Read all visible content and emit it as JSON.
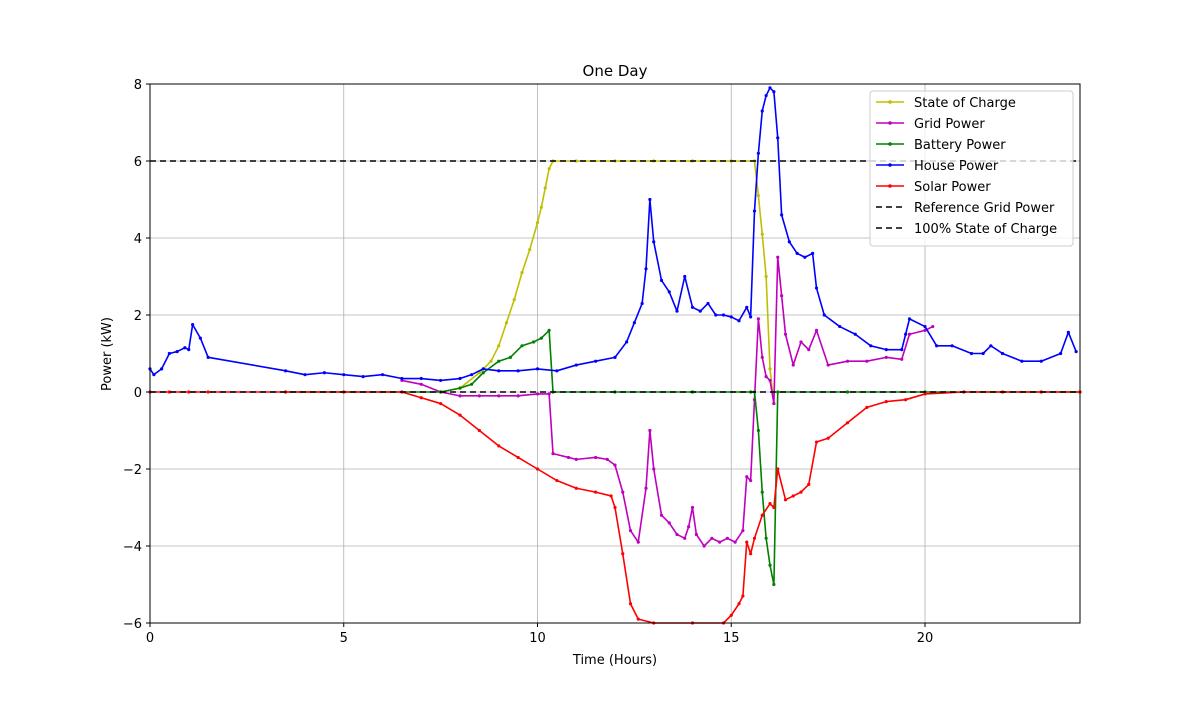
{
  "chart_data": {
    "type": "line",
    "title": "One Day",
    "xlabel": "Time (Hours)",
    "ylabel": "Power (kW)",
    "xlim": [
      0,
      24
    ],
    "ylim": [
      -6,
      8
    ],
    "xticks": [
      0,
      5,
      10,
      15,
      20
    ],
    "yticks": [
      -6,
      -4,
      -2,
      0,
      2,
      4,
      6,
      8
    ],
    "xtick_labels": [
      "0",
      "5",
      "10",
      "15",
      "20"
    ],
    "ytick_labels": [
      "−6",
      "−4",
      "−2",
      "0",
      "2",
      "4",
      "6",
      "8"
    ],
    "grid": true,
    "legend_position": "top-right",
    "series": [
      {
        "name": "State of Charge",
        "color": "#bfbf00",
        "marker": "dot",
        "points": [
          [
            7.5,
            0.0
          ],
          [
            8.0,
            0.1
          ],
          [
            8.5,
            0.5
          ],
          [
            8.8,
            0.8
          ],
          [
            9.0,
            1.2
          ],
          [
            9.2,
            1.8
          ],
          [
            9.4,
            2.4
          ],
          [
            9.6,
            3.1
          ],
          [
            9.8,
            3.7
          ],
          [
            10.0,
            4.4
          ],
          [
            10.1,
            4.8
          ],
          [
            10.2,
            5.3
          ],
          [
            10.3,
            5.8
          ],
          [
            10.4,
            6.0
          ],
          [
            11.0,
            6.0
          ],
          [
            12.0,
            6.0
          ],
          [
            13.0,
            6.0
          ],
          [
            14.0,
            6.0
          ],
          [
            15.0,
            6.0
          ],
          [
            15.6,
            6.0
          ],
          [
            15.7,
            5.1
          ],
          [
            15.8,
            4.1
          ],
          [
            15.9,
            3.0
          ],
          [
            16.0,
            0.6
          ],
          [
            16.1,
            -0.3
          ]
        ]
      },
      {
        "name": "Grid Power",
        "color": "#bf00bf",
        "marker": "dot",
        "points": [
          [
            6.5,
            0.3
          ],
          [
            7.0,
            0.2
          ],
          [
            7.5,
            0.0
          ],
          [
            8.0,
            -0.1
          ],
          [
            8.5,
            -0.1
          ],
          [
            9.0,
            -0.1
          ],
          [
            9.5,
            -0.1
          ],
          [
            10.0,
            -0.05
          ],
          [
            10.3,
            -0.05
          ],
          [
            10.4,
            -1.6
          ],
          [
            10.8,
            -1.7
          ],
          [
            11.0,
            -1.75
          ],
          [
            11.5,
            -1.7
          ],
          [
            11.8,
            -1.75
          ],
          [
            12.0,
            -1.9
          ],
          [
            12.2,
            -2.6
          ],
          [
            12.4,
            -3.6
          ],
          [
            12.6,
            -3.9
          ],
          [
            12.8,
            -2.5
          ],
          [
            12.9,
            -1.0
          ],
          [
            13.0,
            -2.0
          ],
          [
            13.2,
            -3.2
          ],
          [
            13.4,
            -3.4
          ],
          [
            13.6,
            -3.7
          ],
          [
            13.8,
            -3.8
          ],
          [
            13.9,
            -3.5
          ],
          [
            14.0,
            -3.0
          ],
          [
            14.1,
            -3.7
          ],
          [
            14.3,
            -4.0
          ],
          [
            14.5,
            -3.8
          ],
          [
            14.7,
            -3.9
          ],
          [
            14.9,
            -3.8
          ],
          [
            15.1,
            -3.9
          ],
          [
            15.3,
            -3.6
          ],
          [
            15.4,
            -2.2
          ],
          [
            15.5,
            -2.3
          ],
          [
            15.6,
            -0.2
          ],
          [
            15.7,
            1.9
          ],
          [
            15.8,
            0.9
          ],
          [
            15.9,
            0.4
          ],
          [
            16.0,
            0.3
          ],
          [
            16.1,
            -0.3
          ],
          [
            16.2,
            3.5
          ],
          [
            16.3,
            2.5
          ],
          [
            16.4,
            1.5
          ],
          [
            16.6,
            0.7
          ],
          [
            16.8,
            1.3
          ],
          [
            17.0,
            1.1
          ],
          [
            17.2,
            1.6
          ],
          [
            17.5,
            0.7
          ],
          [
            18.0,
            0.8
          ],
          [
            18.5,
            0.8
          ],
          [
            19.0,
            0.9
          ],
          [
            19.4,
            0.85
          ],
          [
            19.6,
            1.5
          ],
          [
            20.0,
            1.6
          ],
          [
            20.2,
            1.7
          ]
        ]
      },
      {
        "name": "Battery Power",
        "color": "#008000",
        "marker": "dot",
        "points": [
          [
            3.5,
            0.0
          ],
          [
            7.5,
            0.0
          ],
          [
            8.0,
            0.1
          ],
          [
            8.3,
            0.2
          ],
          [
            8.6,
            0.5
          ],
          [
            9.0,
            0.8
          ],
          [
            9.3,
            0.9
          ],
          [
            9.6,
            1.2
          ],
          [
            9.9,
            1.3
          ],
          [
            10.1,
            1.4
          ],
          [
            10.3,
            1.6
          ],
          [
            10.4,
            0.0
          ],
          [
            12.0,
            0.0
          ],
          [
            14.0,
            0.0
          ],
          [
            15.5,
            0.0
          ],
          [
            15.6,
            0.0
          ],
          [
            15.7,
            -1.0
          ],
          [
            15.8,
            -2.6
          ],
          [
            15.9,
            -3.8
          ],
          [
            16.0,
            -4.5
          ],
          [
            16.1,
            -5.0
          ],
          [
            16.2,
            0.0
          ],
          [
            18.0,
            0.0
          ],
          [
            20.0,
            0.0
          ],
          [
            24.0,
            0.0
          ]
        ]
      },
      {
        "name": "House Power",
        "color": "#0000ff",
        "marker": "dot",
        "points": [
          [
            0.0,
            0.6
          ],
          [
            0.1,
            0.45
          ],
          [
            0.3,
            0.6
          ],
          [
            0.5,
            1.0
          ],
          [
            0.7,
            1.05
          ],
          [
            0.9,
            1.15
          ],
          [
            1.0,
            1.1
          ],
          [
            1.1,
            1.75
          ],
          [
            1.3,
            1.4
          ],
          [
            1.5,
            0.9
          ],
          [
            3.5,
            0.55
          ],
          [
            4.0,
            0.45
          ],
          [
            4.5,
            0.5
          ],
          [
            5.0,
            0.45
          ],
          [
            5.5,
            0.4
          ],
          [
            6.0,
            0.45
          ],
          [
            6.5,
            0.35
          ],
          [
            7.0,
            0.35
          ],
          [
            7.5,
            0.3
          ],
          [
            8.0,
            0.35
          ],
          [
            8.3,
            0.45
          ],
          [
            8.6,
            0.6
          ],
          [
            9.0,
            0.55
          ],
          [
            9.5,
            0.55
          ],
          [
            10.0,
            0.6
          ],
          [
            10.5,
            0.55
          ],
          [
            11.0,
            0.7
          ],
          [
            11.5,
            0.8
          ],
          [
            12.0,
            0.9
          ],
          [
            12.3,
            1.3
          ],
          [
            12.5,
            1.8
          ],
          [
            12.7,
            2.3
          ],
          [
            12.8,
            3.2
          ],
          [
            12.9,
            5.0
          ],
          [
            13.0,
            3.9
          ],
          [
            13.2,
            2.9
          ],
          [
            13.4,
            2.6
          ],
          [
            13.6,
            2.1
          ],
          [
            13.8,
            3.0
          ],
          [
            14.0,
            2.2
          ],
          [
            14.2,
            2.1
          ],
          [
            14.4,
            2.3
          ],
          [
            14.6,
            2.0
          ],
          [
            14.8,
            2.0
          ],
          [
            15.0,
            1.95
          ],
          [
            15.2,
            1.85
          ],
          [
            15.4,
            2.2
          ],
          [
            15.5,
            1.95
          ],
          [
            15.6,
            4.7
          ],
          [
            15.7,
            6.2
          ],
          [
            15.8,
            7.3
          ],
          [
            15.9,
            7.7
          ],
          [
            16.0,
            7.9
          ],
          [
            16.1,
            7.8
          ],
          [
            16.2,
            6.6
          ],
          [
            16.3,
            4.6
          ],
          [
            16.5,
            3.9
          ],
          [
            16.7,
            3.6
          ],
          [
            16.9,
            3.5
          ],
          [
            17.1,
            3.6
          ],
          [
            17.2,
            2.7
          ],
          [
            17.4,
            2.0
          ],
          [
            17.8,
            1.7
          ],
          [
            18.2,
            1.5
          ],
          [
            18.6,
            1.2
          ],
          [
            19.0,
            1.1
          ],
          [
            19.4,
            1.1
          ],
          [
            19.5,
            1.5
          ],
          [
            19.6,
            1.9
          ],
          [
            20.0,
            1.7
          ],
          [
            20.3,
            1.2
          ],
          [
            20.7,
            1.2
          ],
          [
            21.2,
            1.0
          ],
          [
            21.5,
            1.0
          ],
          [
            21.7,
            1.2
          ],
          [
            22.0,
            1.0
          ],
          [
            22.5,
            0.8
          ],
          [
            23.0,
            0.8
          ],
          [
            23.5,
            1.0
          ],
          [
            23.7,
            1.55
          ],
          [
            23.9,
            1.05
          ]
        ]
      },
      {
        "name": "Solar Power",
        "color": "#ff0000",
        "marker": "dot",
        "points": [
          [
            0.0,
            0.0
          ],
          [
            0.5,
            0.0
          ],
          [
            1.0,
            0.0
          ],
          [
            1.5,
            0.0
          ],
          [
            3.5,
            0.0
          ],
          [
            5.0,
            0.0
          ],
          [
            6.5,
            0.0
          ],
          [
            7.0,
            -0.15
          ],
          [
            7.5,
            -0.3
          ],
          [
            8.0,
            -0.6
          ],
          [
            8.5,
            -1.0
          ],
          [
            9.0,
            -1.4
          ],
          [
            9.5,
            -1.7
          ],
          [
            10.0,
            -2.0
          ],
          [
            10.5,
            -2.3
          ],
          [
            11.0,
            -2.5
          ],
          [
            11.5,
            -2.6
          ],
          [
            11.9,
            -2.7
          ],
          [
            12.0,
            -3.0
          ],
          [
            12.2,
            -4.2
          ],
          [
            12.4,
            -5.5
          ],
          [
            12.6,
            -5.9
          ],
          [
            13.0,
            -6.0
          ],
          [
            14.0,
            -6.0
          ],
          [
            14.8,
            -6.0
          ],
          [
            15.0,
            -5.8
          ],
          [
            15.2,
            -5.5
          ],
          [
            15.3,
            -5.3
          ],
          [
            15.4,
            -3.9
          ],
          [
            15.5,
            -4.2
          ],
          [
            15.6,
            -3.8
          ],
          [
            15.8,
            -3.2
          ],
          [
            16.0,
            -2.9
          ],
          [
            16.1,
            -3.0
          ],
          [
            16.2,
            -2.0
          ],
          [
            16.4,
            -2.8
          ],
          [
            16.6,
            -2.7
          ],
          [
            16.8,
            -2.6
          ],
          [
            17.0,
            -2.4
          ],
          [
            17.2,
            -1.3
          ],
          [
            17.5,
            -1.2
          ],
          [
            18.0,
            -0.8
          ],
          [
            18.5,
            -0.4
          ],
          [
            19.0,
            -0.25
          ],
          [
            19.5,
            -0.2
          ],
          [
            20.0,
            -0.05
          ],
          [
            21.0,
            0.0
          ],
          [
            22.0,
            0.0
          ],
          [
            23.0,
            0.0
          ],
          [
            24.0,
            0.0
          ]
        ]
      },
      {
        "name": "Reference Grid Power",
        "color": "#000000",
        "style": "dashed",
        "points": [
          [
            0,
            0
          ],
          [
            24,
            0
          ]
        ]
      },
      {
        "name": "100% State of Charge",
        "color": "#000000",
        "style": "dashed",
        "points": [
          [
            0,
            6
          ],
          [
            24,
            6
          ]
        ]
      }
    ]
  }
}
